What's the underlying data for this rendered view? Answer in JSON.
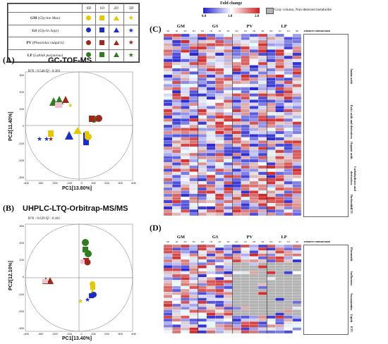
{
  "legend": {
    "columns": [
      "0D",
      "1D",
      "2D",
      "3D"
    ],
    "rows": [
      {
        "abbr": "GM",
        "species": "Glycine Max",
        "color": "#2e7d1f"
      },
      {
        "abbr": "GS",
        "species": "Glycin Soja",
        "color": "#e6c800"
      },
      {
        "abbr": "PV",
        "species": "Phaseolus vulgaris",
        "color": "#1a2fc8"
      },
      {
        "abbr": "LP",
        "species": "Lablab purpureus",
        "color": "#a0281a"
      }
    ],
    "shapes": [
      "circle",
      "square",
      "triangle",
      "star"
    ]
  },
  "fold_change": {
    "title": "Fold change",
    "ticks": [
      "0.0",
      "1.0",
      "2.0"
    ],
    "gray_note": "Gray column, Non-detected metabolite"
  },
  "panel_a": {
    "label": "(A)",
    "title": "GC-TOF-MS",
    "stats": "R²X : 0.548 Q² : 0.303",
    "xlabel": "PC1[13.80%]",
    "ylabel": "PC2[11.40%]",
    "xticks": [
      "-400",
      "-300",
      "-200",
      "-100",
      "0",
      "100",
      "200",
      "300",
      "400"
    ],
    "yticks": [
      "300",
      "200",
      "100",
      "0",
      "-100",
      "-200",
      "-300"
    ]
  },
  "panel_b": {
    "label": "(B)",
    "title": "UHPLC-LTQ-Orbitrap-MS/MS",
    "stats": "R²X : 0.639 Q² : 0.441",
    "xlabel": "PC1[13.40%]",
    "ylabel": "PC2[12.10%]",
    "xticks": [
      "-400",
      "-300",
      "-200",
      "-100",
      "0",
      "100",
      "200",
      "300",
      "400"
    ],
    "yticks": [
      "300",
      "200",
      "100",
      "0",
      "-100",
      "-200",
      "-300"
    ]
  },
  "panel_c": {
    "label": "(C)",
    "groups": [
      "GM",
      "GS",
      "PV",
      "LP"
    ],
    "days": [
      "0D",
      "1D",
      "2D",
      "3D"
    ],
    "id_header": "Tentative Identification",
    "categories": [
      "Amino acids",
      "Fatty acids and derivatives",
      "Organic acids",
      "Carbohydrates and derivatives",
      "Nucleotides",
      "ETC"
    ]
  },
  "panel_d": {
    "label": "(D)",
    "groups": [
      "GM",
      "GS",
      "PV",
      "LP"
    ],
    "days": [
      "0D",
      "1D",
      "2D",
      "3D"
    ],
    "id_header": "Tentative Identification",
    "categories": [
      "Flavonoids",
      "Isoflavones",
      "Soyasaponins",
      "Lipids",
      "ETC"
    ]
  }
}
